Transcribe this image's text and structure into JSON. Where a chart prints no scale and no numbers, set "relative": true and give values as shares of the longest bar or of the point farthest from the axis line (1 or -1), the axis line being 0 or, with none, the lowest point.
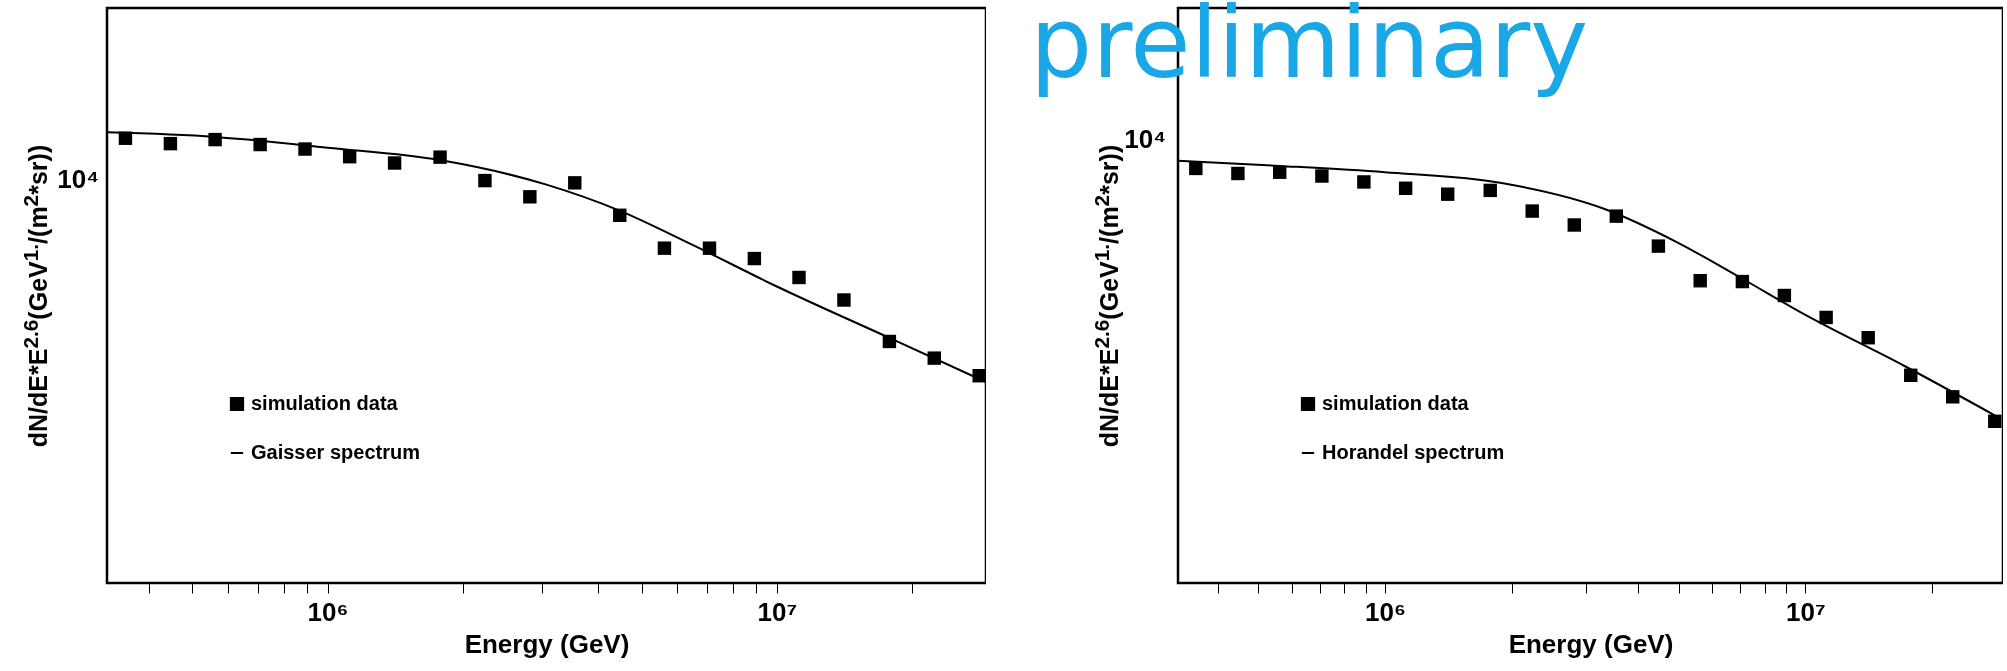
{
  "chart_data": [
    {
      "type": "scatter",
      "xlabel": "Energy (GeV)",
      "ylabel": "dN/dE*E$^{2.6}$(GeV$^{1.}$/(m$^{2}$*sr))",
      "log": "x",
      "grid": false,
      "legend": "bottom left",
      "relative": true,
      "annotations": [
        "preliminary",
        "10⁴"
      ],
      "xlim": [
        323000,
        29200000
      ],
      "xticks": [
        {
          "value": 400000,
          "label": null
        },
        {
          "value": 500000,
          "label": null
        },
        {
          "value": 600000,
          "label": null
        },
        {
          "value": 700000,
          "label": null
        },
        {
          "value": 800000,
          "label": null
        },
        {
          "value": 900000,
          "label": null
        },
        {
          "value": 1000000,
          "label": "10⁶"
        },
        {
          "value": 2000000,
          "label": null
        },
        {
          "value": 3000000,
          "label": null
        },
        {
          "value": 4000000,
          "label": null
        },
        {
          "value": 5000000,
          "label": null
        },
        {
          "value": 6000000,
          "label": null
        },
        {
          "value": 7000000,
          "label": null
        },
        {
          "value": 8000000,
          "label": null
        },
        {
          "value": 9000000,
          "label": null
        },
        {
          "value": 10000000,
          "label": "10⁷"
        },
        {
          "value": 20000000,
          "label": null
        }
      ],
      "series": [
        {
          "name": "simulation data",
          "marker": "square",
          "color": "#000000",
          "x": [
            355000,
            447000,
            562000,
            708000,
            891000,
            1120000,
            1410000,
            1780000,
            2240000,
            2820000,
            3550000,
            4470000,
            5620000,
            7080000,
            8910000,
            11200000,
            14100000,
            17800000,
            22400000,
            28200000
          ],
          "values": [
            0.987,
            0.975,
            0.984,
            0.973,
            0.963,
            0.946,
            0.932,
            0.945,
            0.893,
            0.857,
            0.888,
            0.816,
            0.743,
            0.743,
            0.72,
            0.678,
            0.628,
            0.536,
            0.499,
            0.46
          ]
        },
        {
          "name": "Gaisser spectrum",
          "type": "line",
          "marker": "none",
          "color": "#000000",
          "x": [
            323000,
            562000,
            1000000,
            1790000,
            3070000,
            4450000,
            6440000,
            10000000,
            17700000,
            29200000
          ],
          "values": [
            1,
            0.99,
            0.966,
            0.938,
            0.884,
            0.827,
            0.752,
            0.658,
            0.545,
            0.446
          ]
        }
      ]
    },
    {
      "type": "scatter",
      "xlabel": "Energy (GeV)",
      "ylabel": "dN/dE*E$^{2.6}$(GeV$^{1.}$/(m$^{2}$*sr))",
      "log": "x",
      "grid": false,
      "legend": "bottom left",
      "relative": true,
      "annotations": [
        "10⁴"
      ],
      "xlim": [
        322000,
        29500000
      ],
      "xticks": [
        {
          "value": 400000,
          "label": null
        },
        {
          "value": 500000,
          "label": null
        },
        {
          "value": 600000,
          "label": null
        },
        {
          "value": 700000,
          "label": null
        },
        {
          "value": 800000,
          "label": null
        },
        {
          "value": 900000,
          "label": null
        },
        {
          "value": 1000000,
          "label": "10⁶"
        },
        {
          "value": 2000000,
          "label": null
        },
        {
          "value": 3000000,
          "label": null
        },
        {
          "value": 4000000,
          "label": null
        },
        {
          "value": 5000000,
          "label": null
        },
        {
          "value": 6000000,
          "label": null
        },
        {
          "value": 7000000,
          "label": null
        },
        {
          "value": 8000000,
          "label": null
        },
        {
          "value": 9000000,
          "label": null
        },
        {
          "value": 10000000,
          "label": "10⁷"
        },
        {
          "value": 20000000,
          "label": null
        }
      ],
      "series": [
        {
          "name": "simulation data",
          "marker": "square",
          "color": "#000000",
          "x": [
            355000,
            447000,
            562000,
            708000,
            891000,
            1120000,
            1410000,
            1780000,
            2240000,
            2820000,
            3550000,
            4470000,
            5620000,
            7080000,
            8910000,
            11200000,
            14100000,
            17800000,
            22400000,
            28200000
          ],
          "values": [
            0.982,
            0.97,
            0.973,
            0.964,
            0.95,
            0.935,
            0.921,
            0.93,
            0.881,
            0.848,
            0.869,
            0.798,
            0.716,
            0.714,
            0.681,
            0.629,
            0.581,
            0.492,
            0.441,
            0.383
          ]
        },
        {
          "name": "Horandel spectrum",
          "type": "line",
          "marker": "none",
          "color": "#000000",
          "x": [
            322000,
            562000,
            1000000,
            1910000,
            3330000,
            4890000,
            6930000,
            10000000,
            17200000,
            28800000
          ],
          "values": [
            1,
            0.988,
            0.973,
            0.947,
            0.886,
            0.81,
            0.726,
            0.635,
            0.514,
            0.392
          ]
        }
      ]
    }
  ]
}
